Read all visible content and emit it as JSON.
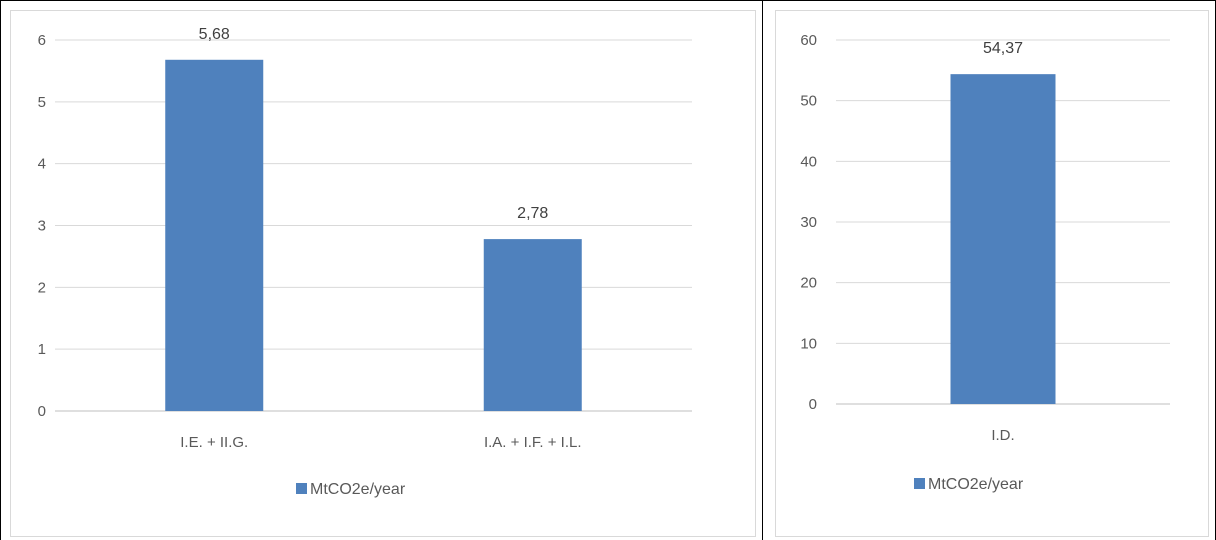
{
  "colors": {
    "bar": "#4F81BD",
    "grid": "#D9D9D9",
    "frame": "#000000",
    "chart_border": "#D9D9D9"
  },
  "chart_data": [
    {
      "type": "bar",
      "categories": [
        "I.E. + II.G.",
        "I.A. + I.F. + I.L."
      ],
      "series": [
        {
          "name": "MtCO2e/year",
          "values": [
            5.68,
            2.78
          ]
        }
      ],
      "data_labels": [
        "5,68",
        "2,78"
      ],
      "yticks": [
        "0",
        "1",
        "2",
        "3",
        "4",
        "5",
        "6"
      ],
      "ylim": [
        0,
        6
      ],
      "title": "",
      "xlabel": "",
      "ylabel": "",
      "grid": true,
      "legend": "bottom"
    },
    {
      "type": "bar",
      "categories": [
        "I.D."
      ],
      "series": [
        {
          "name": "MtCO2e/year",
          "values": [
            54.37
          ]
        }
      ],
      "data_labels": [
        "54,37"
      ],
      "yticks": [
        "0",
        "10",
        "20",
        "30",
        "40",
        "50",
        "60"
      ],
      "ylim": [
        0,
        60
      ],
      "title": "",
      "xlabel": "",
      "ylabel": "",
      "grid": true,
      "legend": "bottom"
    }
  ]
}
